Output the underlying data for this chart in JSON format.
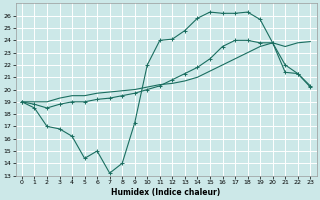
{
  "xlabel": "Humidex (Indice chaleur)",
  "xlim": [
    -0.5,
    23.5
  ],
  "ylim": [
    13,
    27
  ],
  "yticks": [
    13,
    14,
    15,
    16,
    17,
    18,
    19,
    20,
    21,
    22,
    23,
    24,
    25,
    26
  ],
  "xticks": [
    0,
    1,
    2,
    3,
    4,
    5,
    6,
    7,
    8,
    9,
    10,
    11,
    12,
    13,
    14,
    15,
    16,
    17,
    18,
    19,
    20,
    21,
    22,
    23
  ],
  "background_color": "#cce8e8",
  "grid_color": "#ffffff",
  "line_color": "#1a6e60",
  "line1_x": [
    0,
    1,
    2,
    3,
    4,
    5,
    6,
    7,
    8,
    9,
    10,
    11,
    12,
    13,
    14,
    15,
    16,
    17,
    18,
    19,
    20,
    21,
    22,
    23
  ],
  "line1_y": [
    19.0,
    18.5,
    17.0,
    16.8,
    16.2,
    14.4,
    15.0,
    13.2,
    14.0,
    17.3,
    22.0,
    24.0,
    24.1,
    24.8,
    25.8,
    26.3,
    26.2,
    26.2,
    26.3,
    25.7,
    23.8,
    21.4,
    21.3,
    20.2
  ],
  "line2_x": [
    0,
    1,
    2,
    3,
    4,
    5,
    6,
    7,
    8,
    9,
    10,
    11,
    12,
    13,
    14,
    15,
    16,
    17,
    18,
    19,
    20,
    21,
    22,
    23
  ],
  "line2_y": [
    19.0,
    19.0,
    19.0,
    19.3,
    19.5,
    19.5,
    19.7,
    19.8,
    19.9,
    20.0,
    20.2,
    20.4,
    20.5,
    20.7,
    21.0,
    21.5,
    22.0,
    22.5,
    23.0,
    23.5,
    23.8,
    23.5,
    23.8,
    23.9
  ],
  "line3_x": [
    0,
    1,
    2,
    3,
    4,
    5,
    6,
    7,
    8,
    9,
    10,
    11,
    12,
    13,
    14,
    15,
    16,
    17,
    18,
    19,
    20,
    21,
    22,
    23
  ],
  "line3_y": [
    19.0,
    18.8,
    18.5,
    18.8,
    19.0,
    19.0,
    19.2,
    19.3,
    19.5,
    19.7,
    20.0,
    20.3,
    20.8,
    21.3,
    21.8,
    22.5,
    23.5,
    24.0,
    24.0,
    23.8,
    23.8,
    22.0,
    21.3,
    20.3
  ]
}
